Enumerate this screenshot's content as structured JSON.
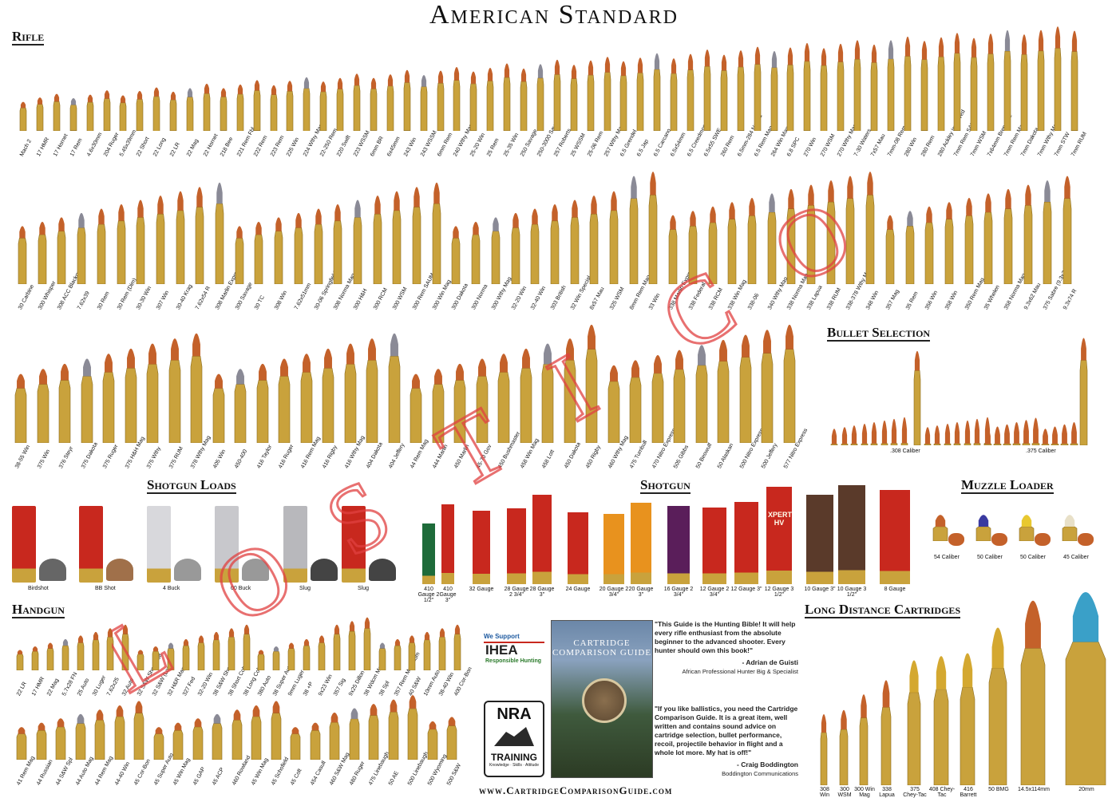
{
  "title": "American Standard",
  "sections": {
    "rifle": "Rifle",
    "bullet_selection": "Bullet Selection",
    "shotgun_loads": "Shotgun Loads",
    "shotgun": "Shotgun",
    "muzzle_loader": "Muzzle Loader",
    "handgun": "Handgun",
    "long_distance": "Long Distance Cartridges"
  },
  "rifle_row1": [
    "Mach 2",
    "17 HMR",
    "17 Hornet",
    "17 Rem",
    "4.6x30mm",
    "204 Ruger",
    "5.45x39mm",
    "22 Short",
    "22 Long",
    "22 LR",
    "22 Mag",
    "22 Hornet",
    "218 Bee",
    "221 Rem Fbl",
    "222 Rem",
    "223 Rem",
    "225 Win",
    "224 Wthy Mag",
    "22-250 Rem",
    "220 Swift",
    "223 WSSM",
    "6mm BR",
    "6x45mm",
    "243 Win",
    "243 WSSM",
    "6mm Rem",
    "240 Wthy Mag",
    "25-20 Win",
    "25 Rem",
    "25-35 Win",
    "250 Savage",
    "250-3000 Savage",
    "257 Roberts",
    "25 WSSM",
    "25-06 Rem",
    "257 Wthy Mag",
    "6.5 Grendel",
    "6.5 Jap",
    "6.5 Carcano",
    "6.5x54mm",
    "6.5 Creedmoor",
    "6.5x55 SWE",
    "260 Rem",
    "6.5mm-284 Norma",
    "6.5 Rem Mag",
    "264 Win Mag",
    "6.8 SPC",
    "270 Win",
    "270 WSM",
    "270 Wthy Mag",
    "7-30 Waters",
    "7x57 Mau",
    "7mm-08 Rem",
    "280 Win",
    "280 Rem",
    "280 Ackley Improved",
    "7mm Rem SAUM",
    "7mm WSM",
    "7x64mm Brenneke",
    "7mm Rem Mag",
    "7mm Dakota",
    "7mm Wthy Mag",
    "7mm STW",
    "7mm RUM"
  ],
  "rifle_row2": [
    "30 Carbine",
    "300 Whisper",
    "308 ACC Blackout",
    "7.62x39",
    "30 Rem",
    "30 Rem (Dim)",
    "30-30 Win",
    "307 Win",
    "30-40 Krag",
    "7.62x54 R",
    "308 Marlin Express",
    "300 Savage",
    "30 TC",
    "308 Win",
    "7.62x51mm",
    "30-06 Springfield",
    "308 Norma Mag",
    "300 H&H",
    "300 RCM",
    "300 WSM",
    "300 Rem SAUM",
    "300 Win Mag",
    "300 Dakota",
    "300 Norma",
    "300 Wthy Mag",
    "32-20 Win",
    "32-40 Win",
    "303 British",
    "32 Win Special",
    "8x57 Mau",
    "325 WSM",
    "8mm Rem Mag",
    "33 Win",
    "338 Marlin Express",
    "338 Federal",
    "338 RCM",
    "338 Win Mag",
    "338-06",
    "340 Wthy Mag",
    "338 Norma Mag",
    "338 Lapua",
    "338 RUM",
    "338-378 Wthy Mag",
    "348 Win",
    "357 Mag",
    "35 Rem",
    "356 Win",
    "358 Win",
    "350 Rem Mag",
    "35 Whelen",
    "358 Norma Mag",
    "9.3x62 Mau",
    "375 Sabre (9.3x74)",
    "9.3x74 R"
  ],
  "rifle_row3": [
    "38-55 Win",
    "375 Win",
    "376 Steyr",
    "375 Dakota",
    "375 Ruger",
    "375 H&H Mag",
    "375 Wthy",
    "375 RUM",
    "378 Wthy Mag",
    "405 Win",
    "450-400",
    "416 Taylor",
    "416 Ruger",
    "416 Rem Mag",
    "416 Rigby",
    "416 Wthy Mag",
    "404 Dakota",
    "404 Jeffery",
    "44 Rem Mag",
    "444 Marlin",
    "450 Marlin",
    "45-70 Gov",
    "450 Bushmaster",
    "458 Win Mag",
    "458 Lott",
    "450 Dakota",
    "450 Rigby",
    "460 Wthy Mag",
    "475 Turnbull",
    "470 Nitro Express",
    "505 Gibbs",
    "50 Beowulf",
    "50 Alaskan",
    "500 Nitro Express",
    "500 Jeffery",
    "577 Nitro Express"
  ],
  "bullet_labels": [
    ".308 Caliber",
    ".375 Caliber"
  ],
  "shotgun_loads": [
    "Birdshot",
    "BB Shot",
    "4 Buck",
    "00 Buck",
    "Slug",
    "Slug"
  ],
  "shotgun": [
    "410 Gauge 2 1/2\"",
    "410 Gauge 3\"",
    "32 Gauge",
    "28 Gauge 2 3/4\"",
    "28 Gauge 3\"",
    "24 Gauge",
    "20 Gauge 2 3/4\"",
    "20 Gauge 3\"",
    "16 Gauge 2 3/4\"",
    "12 Gauge 2 3/4\"",
    "12 Gauge 3\"",
    "12 Gauge 3 1/2\"",
    "10 Gauge 3\"",
    "10 Gauge 3 1/2\"",
    "8 Gauge"
  ],
  "shotgun_print": [
    "XPERT HV"
  ],
  "muzzle": [
    "54 Caliber",
    "50 Caliber",
    "50 Caliber",
    "45 Caliber"
  ],
  "handgun_row1": [
    "22 LR",
    "17 HMR",
    "22 Mag",
    "5.7x28 FN",
    "25 Auto",
    "30 Luger",
    "7.62x25",
    "32 Auto",
    "32 S&W Short Colt",
    "32 S&W (Long)",
    "32 H&R Mag",
    "327 Fed",
    "32-20 Win",
    "38 S&W Short",
    "38 Short Colt",
    "38 Long Colt",
    "380 Auto",
    "38 Super Auto",
    "9mm Luger",
    "38 +P",
    "9x23 Win",
    "357 Sig",
    "9x25 Dillon",
    "38 Wdcm Mag",
    "38 Spl",
    "357 Rem Maximum",
    "40 S&W",
    "10mm Auto",
    "38-40 Win",
    "400 Cor-Bon"
  ],
  "handgun_row2": [
    "41 Rem Mag",
    "44 Russian",
    "44 S&W Spl",
    "44 Auto Mag",
    "44 Rem Mag",
    "44-40 Win",
    "45 Cor-Bon",
    "45 Super Auto",
    "45 Win Mag",
    "45 GAP",
    "45 ACP",
    "460 Rowland",
    "45 Win Mag",
    "45 Schofield",
    "45 Colt",
    "454 Casull",
    "460 S&W Mag",
    "480 Ruger",
    "475 Linebaugh",
    "50 AE",
    "500 Linebaugh",
    "500 Wyoming",
    "500 S&W"
  ],
  "long_distance": [
    "308 Win",
    "300 WSM",
    "300 Win Mag",
    "338 Lapua",
    "375 Chey-Tac",
    "408 Chey-Tac",
    "416 Barrett",
    "50 BMG",
    "14.5x114mm",
    "20mm"
  ],
  "ihea": {
    "top": "We Support",
    "name": "IHEA",
    "sub": "Responsible Hunting"
  },
  "nra": {
    "name": "NRA",
    "sub": "TRAINING",
    "tag": "Knowledge · Skills · Attitude"
  },
  "book": {
    "title": "CARTRIDGE COMPARISON GUIDE"
  },
  "quotes": [
    {
      "text": "\"This Guide is the Hunting Bible! It will help every rifle enthusiast from the absolute beginner to the advanced shooter. Every hunter should own this book!\"",
      "who": "- Adrian de Guisti",
      "aff": "African Professional Hunter Big & Specialist"
    },
    {
      "text": "\"If you like ballistics, you need the Cartridge Comparison Guide. It is a great item, well written and contains sound advice on cartridge selection, bullet performance, recoil, projectile behavior in flight and a whole lot more. My hat is off!\"",
      "who": "- Craig Boddington",
      "aff": "Boddington Communications"
    }
  ],
  "url": "www.CartridgeComparisonGuide.com",
  "watermark": "LOSTICO",
  "colors": {
    "brass": "#c9a23c",
    "bullet": "#c4612a",
    "red_hull": "#c8281e",
    "green_hull": "#1e6b3a",
    "orange_hull": "#e8921e",
    "purple_hull": "#5a1e5a",
    "brown_hull": "#5a3a2a",
    "watermark": "#e04040"
  }
}
